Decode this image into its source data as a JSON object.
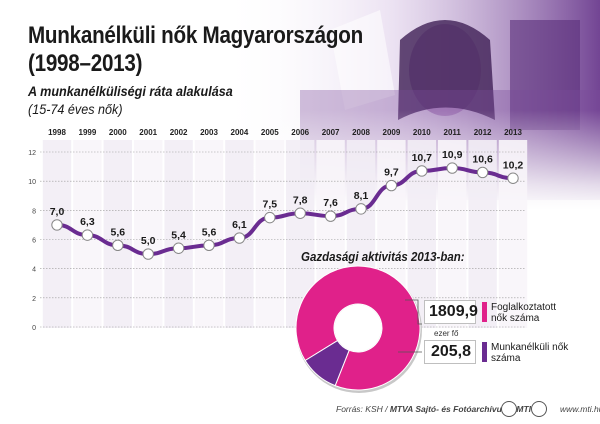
{
  "header": {
    "title_line1": "Munkanélküli nők Magyarországon",
    "title_line2": "(1998–2013)"
  },
  "chart_data": [
    {
      "type": "line",
      "title": "A munkanélküliségi ráta alakulása",
      "subtitle": "(15-74 éves nők)",
      "categories": [
        "1998",
        "1999",
        "2000",
        "2001",
        "2002",
        "2003",
        "2004",
        "2005",
        "2006",
        "2007",
        "2008",
        "2009",
        "2010",
        "2011",
        "2012",
        "2013"
      ],
      "values": [
        7.0,
        6.3,
        5.6,
        5.0,
        5.4,
        5.6,
        6.1,
        7.5,
        7.8,
        7.6,
        8.1,
        9.7,
        10.7,
        10.9,
        10.6,
        10.2
      ],
      "value_labels": [
        "7,0",
        "6,3",
        "5,6",
        "5,0",
        "5,4",
        "5,6",
        "6,1",
        "7,5",
        "7,8",
        "7,6",
        "8,1",
        "9,7",
        "10,7",
        "10,9",
        "10,6",
        "10,2"
      ],
      "y_ticks": [
        "0",
        "2",
        "4",
        "6",
        "8",
        "10",
        "12"
      ],
      "ylim": [
        0,
        12
      ],
      "grid": true,
      "color": "#6a2c91"
    },
    {
      "type": "pie",
      "title": "Gazdasági aktivitás 2013-ban:",
      "unit": "ezer fő",
      "slices": [
        {
          "label": "Foglalkoztatott nők száma",
          "value": 1809.9,
          "value_label": "1809,9",
          "color": "#e0218a"
        },
        {
          "label": "Munkanélküli nők száma",
          "value": 205.8,
          "value_label": "205,8",
          "color": "#6a2c91"
        }
      ]
    }
  ],
  "footer": {
    "source_prefix": "Forrás: KSH / ",
    "source_agency": "MTVA Sajtó- és Fotóarchívum / MTI",
    "logo_left": "MTVA",
    "logo_right": "MTI",
    "website": "www.mti.hu"
  }
}
